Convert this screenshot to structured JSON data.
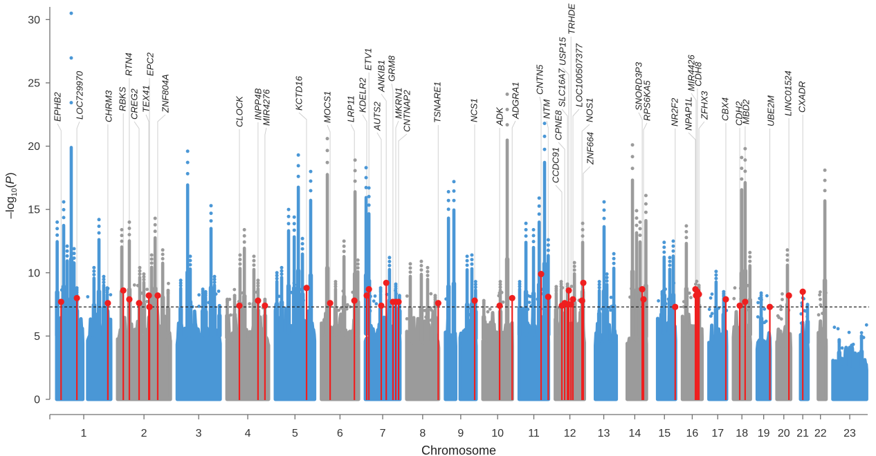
{
  "chart_data": {
    "type": "scatter",
    "subtype": "manhattan",
    "title": "",
    "xlabel": "Chromosome",
    "ylabel_text": "-log10(P)",
    "ylabel": {
      "prefix": "–log",
      "subscript": "10",
      "open": "(",
      "variable": "P",
      "close": ")"
    },
    "ylim": [
      0,
      31
    ],
    "y_ticks": [
      0,
      5,
      10,
      15,
      20,
      25,
      30
    ],
    "grid": false,
    "legend": "none",
    "significance_threshold": 7.3,
    "colors": {
      "odd_chromosomes": "#4a97d6",
      "even_chromosomes": "#9b9b9b",
      "lead_variant": "#ef1f1f",
      "threshold_line": "#222222",
      "leader_line": "#d0d0d0"
    },
    "chromosomes": [
      {
        "label": "1",
        "length_mb": 249.3,
        "data_start_mb": 0,
        "gap_mb": [
          120,
          143
        ],
        "background_max": 6.3,
        "peaks": [
          [
            2,
            14.0
          ],
          [
            32,
            15.6
          ],
          [
            48,
            12.1
          ],
          [
            67,
            30.5,
            19.9
          ],
          [
            80,
            11.9
          ],
          [
            93,
            8.8
          ],
          [
            172,
            10.4
          ],
          [
            195,
            14.2
          ],
          [
            217,
            9.7
          ],
          [
            233,
            8.8
          ]
        ]
      },
      {
        "label": "2",
        "length_mb": 243.2,
        "data_start_mb": 0,
        "background_max": 6.6,
        "peaks": [
          [
            19,
            13.4
          ],
          [
            54,
            14.0
          ],
          [
            102,
            10.4
          ],
          [
            121,
            9.9
          ],
          [
            157,
            11.4
          ],
          [
            173,
            14.3
          ],
          [
            208,
            11.8
          ],
          [
            233,
            8.6
          ]
        ]
      },
      {
        "label": "3",
        "length_mb": 198.0,
        "data_start_mb": 0,
        "background_max": 6.3,
        "peaks": [
          [
            16,
            9.4
          ],
          [
            48,
            19.6
          ],
          [
            60,
            11.3
          ],
          [
            118,
            8.7
          ],
          [
            131,
            8.5
          ],
          [
            156,
            15.3
          ],
          [
            172,
            9.7
          ],
          [
            195,
            7.4
          ]
        ]
      },
      {
        "label": "4",
        "length_mb": 191.2,
        "data_start_mb": 0,
        "background_max": 6.1,
        "peaks": [
          [
            1,
            7.9
          ],
          [
            35,
            8.2
          ],
          [
            60,
            11.4
          ],
          [
            80,
            13.4
          ],
          [
            124,
            11.3
          ],
          [
            143,
            9.4
          ],
          [
            175,
            7.9
          ]
        ]
      },
      {
        "label": "5",
        "length_mb": 180.9,
        "data_start_mb": 0,
        "background_max": 6.6,
        "peaks": [
          [
            7,
            10.0
          ],
          [
            29,
            10.4
          ],
          [
            61,
            15.0
          ],
          [
            87,
            14.4
          ],
          [
            106,
            19.3
          ],
          [
            125,
            12.7
          ],
          [
            163,
            18.0
          ]
        ]
      },
      {
        "label": "6",
        "length_mb": 171.1,
        "data_start_mb": 0,
        "background_max": 6.4,
        "peaks": [
          [
            27,
            20.6
          ],
          [
            65,
            9.3
          ],
          [
            104,
            12.5
          ],
          [
            155,
            18.9
          ],
          [
            168,
            11.0
          ]
        ]
      },
      {
        "label": "7",
        "length_mb": 159.1,
        "data_start_mb": 0,
        "background_max": 6.5,
        "peaks": [
          [
            3,
            18.3
          ],
          [
            16,
            16.7
          ],
          [
            70,
            8.8
          ],
          [
            111,
            11.2
          ],
          [
            140,
            9.1
          ],
          [
            157,
            8.2
          ]
        ]
      },
      {
        "label": "8",
        "length_mb": 146.4,
        "data_start_mb": 0,
        "background_max": 5.8,
        "peaks": [
          [
            16,
            10.7
          ],
          [
            67,
            10.9
          ],
          [
            96,
            10.4
          ],
          [
            131,
            8.2
          ]
        ]
      },
      {
        "label": "9",
        "length_mb": 141.2,
        "data_start_mb": 0,
        "gap_mb": [
          47,
          68
        ],
        "background_max": 6.0,
        "peaks": [
          [
            14,
            16.4
          ],
          [
            39,
            17.2
          ],
          [
            100,
            11.3
          ],
          [
            122,
            11.4
          ],
          [
            139,
            9.3
          ]
        ]
      },
      {
        "label": "10",
        "length_mb": 135.5,
        "data_start_mb": 0,
        "background_max": 6.0,
        "peaks": [
          [
            4,
            7.8
          ],
          [
            80,
            9.3
          ],
          [
            112,
            24.1
          ]
        ]
      },
      {
        "label": "11",
        "length_mb": 135.0,
        "data_start_mb": 0,
        "background_max": 6.4,
        "peaks": [
          [
            2,
            9.3
          ],
          [
            31,
            13.9
          ],
          [
            66,
            13.4
          ],
          [
            92,
            15.9
          ],
          [
            117,
            21.8
          ],
          [
            134,
            12.6
          ]
        ]
      },
      {
        "label": "12",
        "length_mb": 133.9,
        "data_start_mb": 0,
        "background_max": 6.4,
        "peaks": [
          [
            4,
            8.9
          ],
          [
            27,
            9.3
          ],
          [
            56,
            9.1
          ],
          [
            88,
            10.8
          ],
          [
            126,
            13.9
          ]
        ]
      },
      {
        "label": "13",
        "length_mb": 115.2,
        "data_start_mb": 19,
        "background_max": 5.8,
        "peaks": [
          [
            37,
            9.3
          ],
          [
            59,
            15.6
          ],
          [
            72,
            9.9
          ],
          [
            104,
            11.5
          ]
        ]
      },
      {
        "label": "14",
        "length_mb": 107.3,
        "data_start_mb": 19,
        "background_max": 6.2,
        "peaks": [
          [
            43,
            20.1
          ],
          [
            62,
            14.9
          ],
          [
            78,
            14.0
          ],
          [
            105,
            16.1
          ]
        ]
      },
      {
        "label": "15",
        "length_mb": 102.5,
        "data_start_mb": 20,
        "background_max": 6.6,
        "peaks": [
          [
            41,
            8.5
          ],
          [
            50,
            12.4
          ],
          [
            76,
            11.2
          ],
          [
            92,
            12.5
          ]
        ]
      },
      {
        "label": "16",
        "length_mb": 90.4,
        "data_start_mb": 0,
        "background_max": 6.8,
        "peaks": [
          [
            18,
            13.7
          ],
          [
            76,
            9.0
          ]
        ]
      },
      {
        "label": "17",
        "length_mb": 81.2,
        "data_start_mb": 0,
        "background_max": 6.0,
        "peaks": [
          [
            33,
            10.1
          ],
          [
            68,
            8.5
          ]
        ]
      },
      {
        "label": "18",
        "length_mb": 78.1,
        "data_start_mb": 0,
        "background_max": 6.4,
        "peaks": [
          [
            38,
            19.1
          ],
          [
            54,
            19.8
          ],
          [
            76,
            11.6
          ]
        ]
      },
      {
        "label": "19",
        "length_mb": 59.1,
        "data_start_mb": 0,
        "background_max": 5.6,
        "peaks": [
          [
            18,
            8.4
          ]
        ]
      },
      {
        "label": "20",
        "length_mb": 63.0,
        "data_start_mb": 0,
        "background_max": 5.8,
        "peaks": [
          [
            48,
            11.8
          ]
        ]
      },
      {
        "label": "21",
        "length_mb": 48.1,
        "data_start_mb": 14,
        "background_max": 5.6,
        "peaks": [
          [
            46,
            7.5
          ]
        ]
      },
      {
        "label": "22",
        "length_mb": 51.3,
        "data_start_mb": 16,
        "background_max": 6.0,
        "peaks": [
          [
            46,
            18.1
          ]
        ]
      },
      {
        "label": "23",
        "length_mb": 155.3,
        "data_start_mb": 0,
        "background_max": 3.3,
        "peaks": [
          [
            29,
            4.7
          ],
          [
            77,
            4.1
          ],
          [
            132,
            5.0
          ]
        ]
      }
    ],
    "lead_variants": [
      {
        "gene": "EPHB2",
        "chr": "1",
        "pos_mb": 20,
        "value": 7.7
      },
      {
        "gene": "LOC729970",
        "chr": "1",
        "pos_mb": 93,
        "value": 8.0
      },
      {
        "gene": "CHRM3",
        "chr": "1",
        "pos_mb": 236,
        "value": 7.6
      },
      {
        "gene": "RBKS",
        "chr": "2",
        "pos_mb": 26,
        "value": 8.6
      },
      {
        "gene": "RTN4",
        "chr": "2",
        "pos_mb": 54,
        "value": 7.9
      },
      {
        "gene": "CREG2",
        "chr": "2",
        "pos_mb": 99,
        "value": 7.6
      },
      {
        "gene": "TEX41",
        "chr": "2",
        "pos_mb": 144,
        "value": 8.2
      },
      {
        "gene": "EPC2",
        "chr": "2",
        "pos_mb": 147,
        "value": 7.3
      },
      {
        "gene": "ZNF804A",
        "chr": "2",
        "pos_mb": 185,
        "value": 8.2
      },
      {
        "gene": "CLOCK",
        "chr": "4",
        "pos_mb": 57,
        "value": 7.4
      },
      {
        "gene": "INPP4B",
        "chr": "4",
        "pos_mb": 143,
        "value": 7.8
      },
      {
        "gene": "MIR4276",
        "chr": "4",
        "pos_mb": 175,
        "value": 7.4
      },
      {
        "gene": "KCTD16",
        "chr": "5",
        "pos_mb": 144,
        "value": 8.8
      },
      {
        "gene": "MOCS1",
        "chr": "6",
        "pos_mb": 40,
        "value": 7.6
      },
      {
        "gene": "LRP11",
        "chr": "6",
        "pos_mb": 152,
        "value": 7.8
      },
      {
        "gene": "KDELR2",
        "chr": "7",
        "pos_mb": 6,
        "value": 8.2
      },
      {
        "gene": "ETV1",
        "chr": "7",
        "pos_mb": 16,
        "value": 8.7
      },
      {
        "gene": "AUTS2",
        "chr": "7",
        "pos_mb": 73,
        "value": 7.4
      },
      {
        "gene": "ANKIB1",
        "chr": "7",
        "pos_mb": 96,
        "value": 9.2
      },
      {
        "gene": "GRM8",
        "chr": "7",
        "pos_mb": 127,
        "value": 7.7
      },
      {
        "gene": "MKRN1",
        "chr": "7",
        "pos_mb": 140,
        "value": 7.7
      },
      {
        "gene": "CNTNAP2",
        "chr": "7",
        "pos_mb": 153,
        "value": 7.7
      },
      {
        "gene": "TSNARE1",
        "chr": "8",
        "pos_mb": 145,
        "value": 7.6
      },
      {
        "gene": "NCS1",
        "chr": "9",
        "pos_mb": 135,
        "value": 7.8
      },
      {
        "gene": "ADK",
        "chr": "10",
        "pos_mb": 77,
        "value": 7.4
      },
      {
        "gene": "ADGRA1",
        "chr": "10",
        "pos_mb": 135,
        "value": 8.0
      },
      {
        "gene": "CNTN5",
        "chr": "11",
        "pos_mb": 101,
        "value": 9.9
      },
      {
        "gene": "NTM",
        "chr": "11",
        "pos_mb": 134,
        "value": 8.1
      },
      {
        "gene": "CCDC91",
        "chr": "12",
        "pos_mb": 30,
        "value": 7.4
      },
      {
        "gene": "CPNE8",
        "chr": "12",
        "pos_mb": 43,
        "value": 7.6
      },
      {
        "gene": "SLC16A7",
        "chr": "12",
        "pos_mb": 56,
        "value": 7.5
      },
      {
        "gene": "USP15",
        "chr": "12",
        "pos_mb": 62,
        "value": 8.6
      },
      {
        "gene": "TRHDE",
        "chr": "12",
        "pos_mb": 72,
        "value": 7.5
      },
      {
        "gene": "LOC100507377",
        "chr": "12",
        "pos_mb": 81,
        "value": 7.9
      },
      {
        "gene": "NOS1",
        "chr": "12",
        "pos_mb": 123,
        "value": 7.8
      },
      {
        "gene": "ZNF664",
        "chr": "12",
        "pos_mb": 129,
        "value": 9.2
      },
      {
        "gene": "SNORD3P3",
        "chr": "14",
        "pos_mb": 88,
        "value": 8.7
      },
      {
        "gene": "RPS6KA5",
        "chr": "14",
        "pos_mb": 94,
        "value": 7.9
      },
      {
        "gene": "NR2F2",
        "chr": "15",
        "pos_mb": 101,
        "value": 7.3
      },
      {
        "gene": "NPAP1L",
        "chr": "16",
        "pos_mb": 60,
        "value": 8.7
      },
      {
        "gene": "MIR4426",
        "chr": "16",
        "pos_mb": 63,
        "value": 8.2
      },
      {
        "gene": "CDH8",
        "chr": "16",
        "pos_mb": 69,
        "value": 8.5
      },
      {
        "gene": "ZFHX3",
        "chr": "16",
        "pos_mb": 76,
        "value": 8.3
      },
      {
        "gene": "CBX4",
        "chr": "17",
        "pos_mb": 78,
        "value": 7.9
      },
      {
        "gene": "CDH2",
        "chr": "18",
        "pos_mb": 29,
        "value": 7.4
      },
      {
        "gene": "MBD2",
        "chr": "18",
        "pos_mb": 54,
        "value": 7.7
      },
      {
        "gene": "UBE2M",
        "chr": "19",
        "pos_mb": 58,
        "value": 7.3
      },
      {
        "gene": "LINC01524",
        "chr": "20",
        "pos_mb": 55,
        "value": 8.2
      },
      {
        "gene": "CXADR",
        "chr": "21",
        "pos_mb": 24,
        "value": 8.5
      }
    ]
  }
}
